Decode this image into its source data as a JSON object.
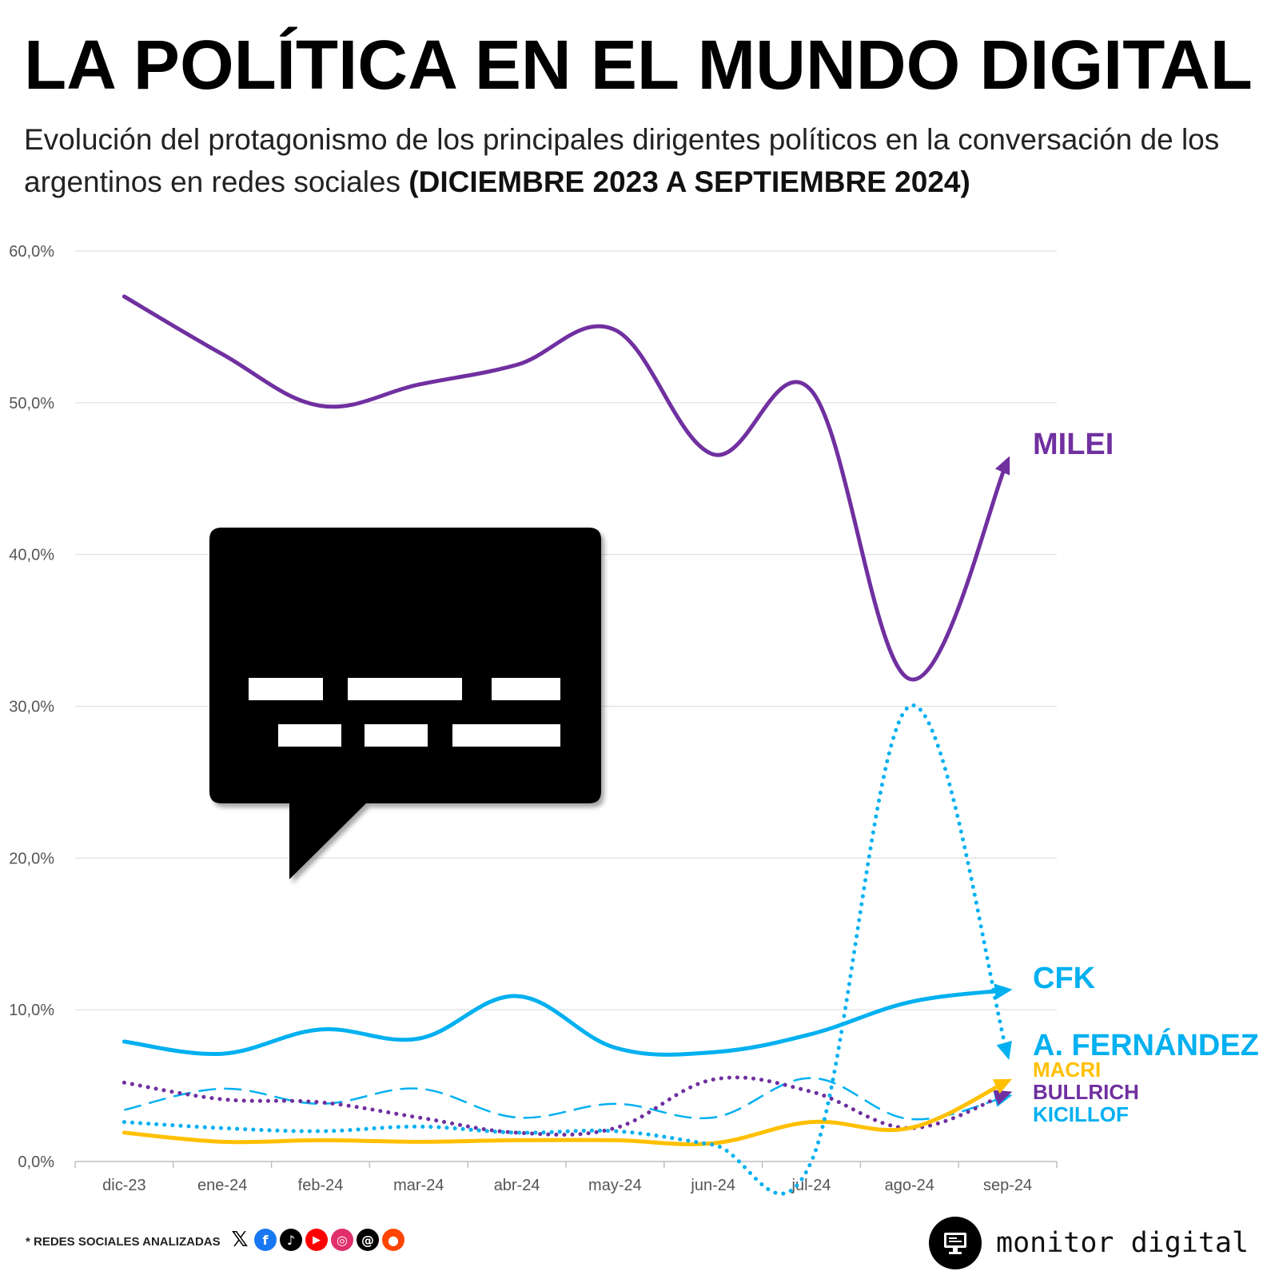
{
  "header": {
    "title": "LA POLÍTICA EN EL MUNDO DIGITAL",
    "subtitle": "Evolución del protagonismo de los principales dirigentes políticos en la conversación de los argentinos en redes sociales",
    "subtitle_bold": "(DICIEMBRE 2023 A SEPTIEMBRE 2024)"
  },
  "footer": {
    "note": "* REDES SOCIALES ANALIZADAS",
    "social_icons": [
      "x-icon",
      "facebook-icon",
      "tiktok-icon",
      "youtube-icon",
      "instagram-icon",
      "threads-icon",
      "reddit-icon"
    ],
    "brand": "monitor digital"
  },
  "chart_data": {
    "type": "line",
    "title": "LA POLÍTICA EN EL MUNDO DIGITAL",
    "xlabel": "",
    "ylabel": "",
    "ylim": [
      0,
      60
    ],
    "yticks": [
      0,
      10,
      20,
      30,
      40,
      50,
      60
    ],
    "ytick_labels": [
      "0,0%",
      "10,0%",
      "20,0%",
      "30,0%",
      "40,0%",
      "50,0%",
      "60,0%"
    ],
    "categories": [
      "dic-23",
      "ene-24",
      "feb-24",
      "mar-24",
      "abr-24",
      "may-24",
      "jun-24",
      "jul-24",
      "ago-24",
      "sep-24"
    ],
    "grid": true,
    "series": [
      {
        "name": "MILEI",
        "color": "#7030A0",
        "style": "solid",
        "label_size": "large",
        "values": [
          57.0,
          53.2,
          49.8,
          51.2,
          52.5,
          54.8,
          46.6,
          50.8,
          31.8,
          46.2
        ]
      },
      {
        "name": "CFK",
        "color": "#00B0F0",
        "style": "solid",
        "label_size": "large",
        "values": [
          7.9,
          7.1,
          8.7,
          8.1,
          10.9,
          7.5,
          7.2,
          8.4,
          10.5,
          11.3
        ]
      },
      {
        "name": "A. FERNÁNDEZ",
        "color": "#00B0F0",
        "style": "dotted",
        "label_size": "large",
        "values": [
          2.6,
          2.2,
          2.0,
          2.3,
          1.9,
          2.0,
          1.1,
          0.0,
          30.0,
          7.0
        ]
      },
      {
        "name": "MACRI",
        "color": "#FFC000",
        "style": "solid",
        "label_size": "small",
        "values": [
          1.9,
          1.3,
          1.4,
          1.3,
          1.4,
          1.4,
          1.2,
          2.6,
          2.2,
          5.3
        ]
      },
      {
        "name": "BULLRICH",
        "color": "#7030A0",
        "style": "dotted",
        "label_size": "small",
        "values": [
          5.2,
          4.1,
          3.9,
          2.9,
          1.9,
          2.2,
          5.4,
          4.6,
          2.2,
          4.5
        ]
      },
      {
        "name": "KICILLOF",
        "color": "#00B0F0",
        "style": "dashed",
        "label_size": "small",
        "values": [
          3.4,
          4.8,
          3.8,
          4.8,
          2.9,
          3.8,
          2.9,
          5.5,
          2.8,
          4.3
        ]
      }
    ]
  }
}
